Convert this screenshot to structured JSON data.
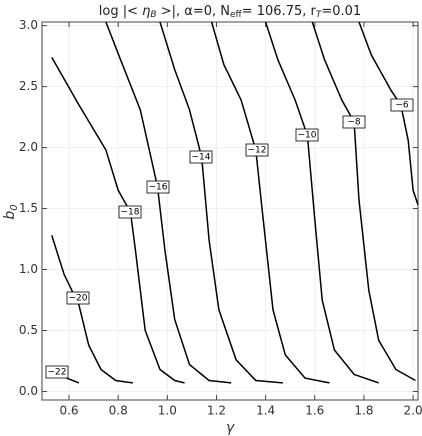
{
  "chart_data": {
    "type": "contour",
    "title": [
      "log |< ",
      "η",
      "B",
      " >|, α=0,  N",
      "eff",
      "= 106.75,  r",
      "T",
      "=0.01"
    ],
    "xlabel": "γ",
    "ylabel": [
      "b",
      "0"
    ],
    "xlim": [
      0.49,
      2.02
    ],
    "ylim": [
      -0.07,
      3.03
    ],
    "xticks": [
      0.6,
      0.8,
      {
        "value": 1.0,
        "label": "1.0"
      },
      1.2,
      1.4,
      1.6,
      1.8,
      {
        "value": 2.0,
        "label": "2.0"
      }
    ],
    "yticks": [
      {
        "value": 0.0,
        "label": "0.0"
      },
      0.5,
      {
        "value": 1.0,
        "label": "1.0"
      },
      1.5,
      {
        "value": 2.0,
        "label": "2.0"
      },
      2.5,
      {
        "value": 3.0,
        "label": "3.0"
      }
    ],
    "grid": true,
    "color": "#000000",
    "contours": [
      {
        "label": "−22",
        "x": [
          0.59,
          0.64
        ],
        "y": [
          0.11,
          0.07
        ]
      },
      {
        "label": "−20",
        "x": [
          0.53,
          0.58,
          0.64,
          0.68,
          0.73,
          0.79,
          0.86
        ],
        "y": [
          1.28,
          0.96,
          0.71,
          0.38,
          0.18,
          0.09,
          0.07
        ]
      },
      {
        "label": "−18",
        "x": [
          0.53,
          0.64,
          0.75,
          0.8,
          0.85,
          0.87,
          0.91,
          0.97,
          1.03,
          1.07
        ],
        "y": [
          2.74,
          2.35,
          1.98,
          1.65,
          1.47,
          1.16,
          0.5,
          0.18,
          0.09,
          0.07
        ]
      },
      {
        "label": "−16",
        "x": [
          0.75,
          0.81,
          0.89,
          0.96,
          0.99,
          1.03,
          1.09,
          1.17,
          1.26
        ],
        "y": [
          3.03,
          2.72,
          2.31,
          1.68,
          1.16,
          0.59,
          0.22,
          0.09,
          0.07
        ]
      },
      {
        "label": "−14",
        "x": [
          0.97,
          1.03,
          1.09,
          1.14,
          1.17,
          1.21,
          1.28,
          1.36,
          1.47
        ],
        "y": [
          3.03,
          2.64,
          2.31,
          1.92,
          1.24,
          0.67,
          0.26,
          0.09,
          0.07
        ]
      },
      {
        "label": "−12",
        "x": [
          1.18,
          1.23,
          1.3,
          1.36,
          1.39,
          1.43,
          1.48,
          1.56,
          1.66
        ],
        "y": [
          3.03,
          2.68,
          2.39,
          1.98,
          1.41,
          0.67,
          0.3,
          0.11,
          0.07
        ]
      },
      {
        "label": "−10",
        "x": [
          1.4,
          1.45,
          1.52,
          1.57,
          1.6,
          1.63,
          1.68,
          1.76,
          1.86
        ],
        "y": [
          3.03,
          2.72,
          2.39,
          2.1,
          1.41,
          0.75,
          0.34,
          0.14,
          0.07
        ]
      },
      {
        "label": "−8",
        "x": [
          1.59,
          1.64,
          1.71,
          1.76,
          1.78,
          1.82,
          1.86,
          1.93,
          2.01
        ],
        "y": [
          3.03,
          2.72,
          2.39,
          2.21,
          1.57,
          0.83,
          0.42,
          0.18,
          0.09
        ]
      },
      {
        "label": "−6",
        "x": [
          1.78,
          1.83,
          1.91,
          1.95,
          1.98,
          2.0,
          2.02
        ],
        "y": [
          3.03,
          2.76,
          2.47,
          2.35,
          2.06,
          1.65,
          1.53
        ]
      }
    ]
  }
}
